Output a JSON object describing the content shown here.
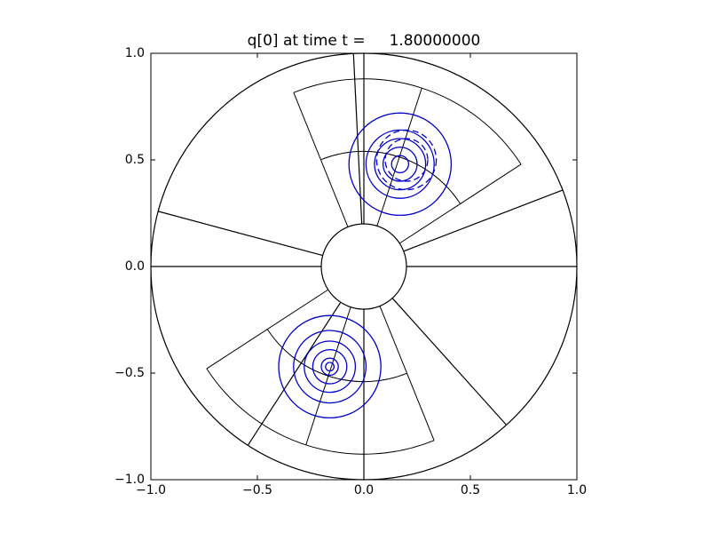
{
  "chart_data": {
    "type": "contour",
    "title": "q[0] at time t =     1.80000000",
    "xlim": [
      -1,
      1
    ],
    "ylim": [
      -1,
      1
    ],
    "xticks": [
      {
        "value": -1,
        "label": "−1.0"
      },
      {
        "value": -0.5,
        "label": "−0.5"
      },
      {
        "value": 0,
        "label": "0.0"
      },
      0.5,
      {
        "value": 1,
        "label": "1.0"
      }
    ],
    "yticks": [
      {
        "value": -1,
        "label": "−1.0"
      },
      {
        "value": -0.5,
        "label": "−0.5"
      },
      {
        "value": 0,
        "label": "0.0"
      },
      0.5,
      {
        "value": 1,
        "label": "1.0"
      }
    ],
    "mesh": {
      "color": "#000000",
      "inner_radius": 0.2,
      "outer_radius": 1,
      "spokes": [
        0,
        21,
        90,
        92.8,
        165,
        180,
        237,
        270,
        312
      ],
      "sectors": [
        {
          "a0": 33,
          "a1": 112,
          "r0": 0.2,
          "r1": 0.88,
          "spokes": [
            72
          ],
          "arcs": [
            0.54
          ]
        },
        {
          "a0": 213,
          "a1": 292,
          "r0": 0.2,
          "r1": 0.88,
          "spokes": [
            252
          ],
          "arcs": [
            0.54
          ]
        }
      ]
    },
    "contours": [
      {
        "color": "#0000cc",
        "dash": false,
        "center": [
          0.17,
          0.48
        ],
        "radii": [
          0.24,
          0.16,
          0.12,
          0.08,
          0.04
        ]
      },
      {
        "color": "#0000cc",
        "dash": true,
        "center": [
          0.2,
          0.5
        ],
        "radii": [
          0.14,
          0.1
        ]
      },
      {
        "color": "#0000cc",
        "dash": false,
        "center": [
          -0.16,
          -0.47
        ],
        "radii": [
          0.24,
          0.17,
          0.12,
          0.08,
          0.04,
          0.02
        ]
      }
    ]
  }
}
